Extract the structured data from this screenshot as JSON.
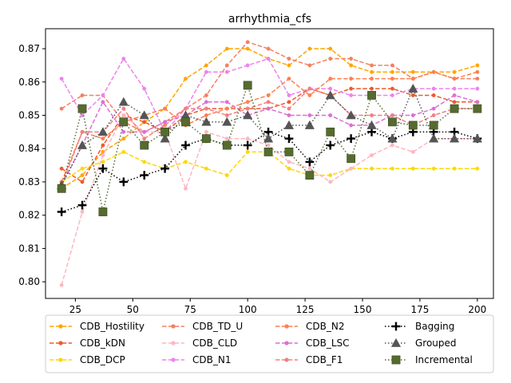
{
  "chart_data": {
    "type": "line",
    "title": "arrhythmia_cfs",
    "xlabel": "",
    "ylabel": "",
    "xlim": [
      12,
      207
    ],
    "ylim": [
      0.795,
      0.876
    ],
    "x_ticks": [
      25,
      50,
      75,
      100,
      125,
      150,
      175,
      200
    ],
    "y_ticks": [
      0.8,
      0.81,
      0.82,
      0.83,
      0.84,
      0.85,
      0.86,
      0.87
    ],
    "grid": false,
    "legend_placement": "below",
    "x": [
      19,
      28,
      37,
      46,
      55,
      64,
      73,
      82,
      91,
      100,
      109,
      118,
      127,
      136,
      145,
      154,
      163,
      172,
      181,
      190,
      200
    ],
    "series": [
      {
        "name": "CDB_Hostility",
        "color": "#FFA500",
        "linestyle": "dashed",
        "marker": "circle",
        "values": [
          0.828,
          0.832,
          0.839,
          0.843,
          0.848,
          0.852,
          0.861,
          0.865,
          0.87,
          0.87,
          0.867,
          0.865,
          0.87,
          0.87,
          0.865,
          0.863,
          0.863,
          0.863,
          0.863,
          0.863,
          0.865
        ]
      },
      {
        "name": "CDB_kDN",
        "color": "#EE5A2C",
        "linestyle": "dashed",
        "marker": "circle",
        "values": [
          0.834,
          0.83,
          0.841,
          0.85,
          0.848,
          0.845,
          0.85,
          0.852,
          0.852,
          0.852,
          0.852,
          0.854,
          0.858,
          0.856,
          0.858,
          0.858,
          0.858,
          0.856,
          0.856,
          0.854,
          0.854
        ]
      },
      {
        "name": "CDB_DCP",
        "color": "#FFD700",
        "linestyle": "dashed",
        "marker": "circle",
        "values": [
          0.83,
          0.834,
          0.836,
          0.839,
          0.836,
          0.834,
          0.836,
          0.834,
          0.832,
          0.839,
          0.839,
          0.834,
          0.832,
          0.832,
          0.834,
          0.834,
          0.834,
          0.834,
          0.834,
          0.834,
          0.834
        ]
      },
      {
        "name": "CDB_TD_U",
        "color": "#F48060",
        "linestyle": "dashed",
        "marker": "circle",
        "values": [
          0.852,
          0.856,
          0.856,
          0.848,
          0.845,
          0.848,
          0.852,
          0.856,
          0.865,
          0.872,
          0.87,
          0.867,
          0.865,
          0.867,
          0.867,
          0.865,
          0.865,
          0.861,
          0.863,
          0.861,
          0.861
        ]
      },
      {
        "name": "CDB_CLD",
        "color": "#FFB6C1",
        "linestyle": "dashed",
        "marker": "circle",
        "values": [
          0.799,
          0.821,
          0.838,
          0.85,
          0.845,
          0.845,
          0.828,
          0.845,
          0.843,
          0.843,
          0.841,
          0.836,
          0.834,
          0.83,
          0.834,
          0.838,
          0.841,
          0.839,
          0.843,
          0.843,
          0.843
        ]
      },
      {
        "name": "CDB_N1",
        "color": "#EE82EE",
        "linestyle": "dashed",
        "marker": "circle",
        "values": [
          0.861,
          0.85,
          0.856,
          0.867,
          0.858,
          0.845,
          0.852,
          0.863,
          0.863,
          0.865,
          0.867,
          0.856,
          0.858,
          0.858,
          0.856,
          0.856,
          0.856,
          0.858,
          0.858,
          0.858,
          0.858
        ]
      },
      {
        "name": "CDB_N2",
        "color": "#FF7F50",
        "linestyle": "dashed",
        "marker": "circle",
        "values": [
          0.83,
          0.845,
          0.843,
          0.848,
          0.85,
          0.852,
          0.847,
          0.85,
          0.852,
          0.854,
          0.856,
          0.861,
          0.856,
          0.861,
          0.861,
          0.861,
          0.861,
          0.861,
          0.863,
          0.861,
          0.863
        ]
      },
      {
        "name": "CDB_LSC",
        "color": "#DA70D6",
        "linestyle": "dashed",
        "marker": "circle",
        "values": [
          0.829,
          0.841,
          0.854,
          0.845,
          0.845,
          0.848,
          0.85,
          0.854,
          0.854,
          0.85,
          0.852,
          0.85,
          0.85,
          0.85,
          0.847,
          0.847,
          0.85,
          0.85,
          0.852,
          0.856,
          0.854
        ]
      },
      {
        "name": "CDB_F1",
        "color": "#F08080",
        "linestyle": "dashed",
        "marker": "circle",
        "values": [
          0.829,
          0.845,
          0.845,
          0.852,
          0.843,
          0.847,
          0.852,
          0.852,
          0.85,
          0.852,
          0.854,
          0.852,
          0.858,
          0.856,
          0.85,
          0.85,
          0.85,
          0.847,
          0.85,
          0.852,
          0.852
        ]
      },
      {
        "name": "Bagging",
        "color": "#000000",
        "linestyle": "dotted",
        "marker": "plus",
        "values": [
          0.821,
          0.823,
          0.834,
          0.83,
          0.832,
          0.834,
          0.841,
          0.843,
          0.841,
          0.841,
          0.845,
          0.843,
          0.836,
          0.841,
          0.843,
          0.845,
          0.843,
          0.845,
          0.845,
          0.845,
          0.843
        ]
      },
      {
        "name": "Grouped",
        "color": "#555555",
        "linestyle": "dotted",
        "marker": "triangle",
        "values": [
          0.829,
          0.841,
          0.845,
          0.854,
          0.85,
          0.843,
          0.85,
          0.848,
          0.848,
          0.85,
          0.843,
          0.847,
          0.847,
          0.856,
          0.85,
          0.847,
          0.843,
          0.858,
          0.843,
          0.843,
          0.843
        ]
      },
      {
        "name": "Incremental",
        "color": "#556B2F",
        "linestyle": "dotted",
        "marker": "square",
        "values": [
          0.828,
          0.852,
          0.821,
          0.848,
          0.841,
          0.845,
          0.848,
          0.843,
          0.841,
          0.859,
          0.839,
          0.839,
          0.832,
          0.845,
          0.837,
          0.856,
          0.848,
          0.847,
          0.847,
          0.852,
          0.852
        ]
      }
    ]
  }
}
